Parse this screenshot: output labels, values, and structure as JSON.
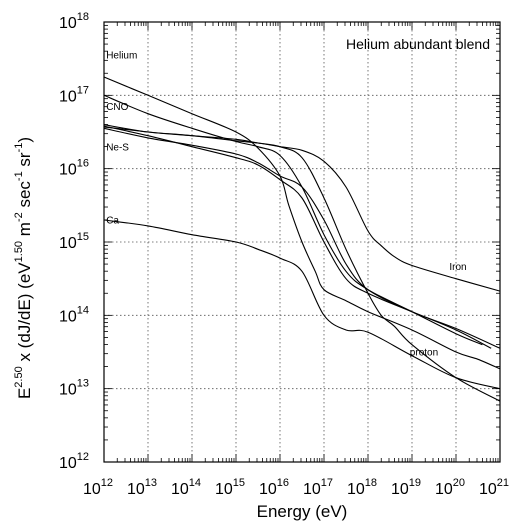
{
  "chart_data": {
    "type": "line",
    "title": "Helium abundant blend",
    "xlabel": "Energy (eV)",
    "ylabel": {
      "base": "E",
      "exp": "2.50",
      "mid": " x (dJ/dE)  (eV",
      "exp2": "1.50",
      "units": " m",
      "units_exp": "-2",
      "sec": " sec",
      "sec_exp": "-1",
      "sr": " sr",
      "sr_exp": "-1",
      "close": ")"
    },
    "x_scale": "log",
    "y_scale": "log",
    "xlim_exp": [
      12,
      21
    ],
    "ylim_exp": [
      12,
      18
    ],
    "x_tick_exps": [
      "12",
      "13",
      "14",
      "15",
      "16",
      "17",
      "18",
      "19",
      "20",
      "21"
    ],
    "y_tick_exps": [
      "12",
      "13",
      "14",
      "15",
      "16",
      "17",
      "18"
    ],
    "tick_base": "10",
    "grid": true,
    "series": [
      {
        "name": "Helium",
        "label_at": [
          12.05,
          17.5
        ],
        "points": [
          [
            12.0,
            17.25
          ],
          [
            13.0,
            17.0
          ],
          [
            14.0,
            16.75
          ],
          [
            15.0,
            16.5
          ],
          [
            15.5,
            16.28
          ],
          [
            16.0,
            15.9
          ],
          [
            16.2,
            15.5
          ],
          [
            16.5,
            15.0
          ],
          [
            16.8,
            14.6
          ],
          [
            17.0,
            14.35
          ],
          [
            17.5,
            14.2
          ],
          [
            18.0,
            14.05
          ],
          [
            19.0,
            13.8
          ],
          [
            20.0,
            13.5
          ],
          [
            20.5,
            13.4
          ],
          [
            21.0,
            13.27
          ]
        ]
      },
      {
        "name": "CNO",
        "label_at": [
          12.05,
          16.8
        ],
        "points": [
          [
            12.0,
            17.0
          ],
          [
            13.0,
            16.75
          ],
          [
            14.0,
            16.55
          ],
          [
            15.0,
            16.37
          ],
          [
            15.5,
            16.3
          ],
          [
            16.0,
            16.18
          ],
          [
            16.5,
            15.75
          ],
          [
            17.0,
            15.1
          ],
          [
            17.5,
            14.6
          ],
          [
            18.0,
            14.35
          ],
          [
            19.0,
            14.05
          ],
          [
            20.0,
            13.75
          ],
          [
            20.6,
            13.6
          ]
        ]
      },
      {
        "name": "Ne-S",
        "label_at": [
          12.05,
          16.25
        ],
        "points": [
          [
            12.0,
            16.58
          ],
          [
            13.0,
            16.45
          ],
          [
            14.0,
            16.3
          ],
          [
            15.0,
            16.15
          ],
          [
            15.5,
            16.05
          ],
          [
            16.0,
            15.85
          ],
          [
            16.5,
            15.6
          ],
          [
            17.0,
            15.0
          ],
          [
            17.5,
            14.5
          ],
          [
            18.0,
            14.3
          ],
          [
            19.0,
            14.05
          ],
          [
            20.0,
            13.8
          ],
          [
            20.8,
            13.55
          ]
        ]
      },
      {
        "name": "",
        "label_at": null,
        "points": [
          [
            12.0,
            16.55
          ],
          [
            13.0,
            16.42
          ],
          [
            14.0,
            16.32
          ],
          [
            15.0,
            16.2
          ],
          [
            15.5,
            16.08
          ],
          [
            16.0,
            15.9
          ],
          [
            16.5,
            15.75
          ],
          [
            17.0,
            15.3
          ],
          [
            17.5,
            14.7
          ],
          [
            18.0,
            14.35
          ],
          [
            19.0,
            14.05
          ],
          [
            20.0,
            13.82
          ],
          [
            21.0,
            13.55
          ]
        ]
      },
      {
        "name": "Ca",
        "label_at": [
          12.05,
          15.25
        ],
        "points": [
          [
            12.0,
            15.3
          ],
          [
            13.0,
            15.22
          ],
          [
            14.0,
            15.1
          ],
          [
            15.0,
            15.0
          ],
          [
            15.5,
            14.9
          ],
          [
            16.0,
            14.78
          ],
          [
            16.5,
            14.6
          ],
          [
            17.0,
            14.0
          ],
          [
            17.5,
            13.8
          ],
          [
            18.0,
            13.77
          ],
          [
            19.0,
            13.45
          ],
          [
            20.0,
            13.15
          ],
          [
            21.0,
            13.0
          ]
        ]
      },
      {
        "name": "proton",
        "label_at": [
          18.95,
          13.45
        ],
        "points": [
          [
            12.0,
            16.6
          ],
          [
            13.0,
            16.5
          ],
          [
            14.0,
            16.45
          ],
          [
            15.0,
            16.4
          ],
          [
            15.5,
            16.35
          ],
          [
            16.0,
            16.3
          ],
          [
            16.5,
            16.15
          ],
          [
            17.0,
            15.6
          ],
          [
            17.5,
            14.9
          ],
          [
            18.0,
            14.3
          ],
          [
            18.3,
            14.0
          ],
          [
            18.6,
            13.85
          ],
          [
            19.0,
            13.6
          ],
          [
            20.0,
            13.15
          ],
          [
            21.0,
            12.83
          ]
        ]
      },
      {
        "name": "Iron",
        "label_at": [
          19.85,
          14.62
        ],
        "points": [
          [
            12.0,
            16.57
          ],
          [
            13.0,
            16.5
          ],
          [
            14.0,
            16.45
          ],
          [
            15.0,
            16.38
          ],
          [
            15.5,
            16.35
          ],
          [
            16.0,
            16.3
          ],
          [
            16.5,
            16.25
          ],
          [
            17.0,
            16.1
          ],
          [
            17.5,
            15.75
          ],
          [
            18.0,
            15.15
          ],
          [
            18.3,
            14.95
          ],
          [
            18.6,
            14.8
          ],
          [
            19.0,
            14.68
          ],
          [
            20.0,
            14.5
          ],
          [
            21.0,
            14.33
          ]
        ]
      }
    ]
  }
}
